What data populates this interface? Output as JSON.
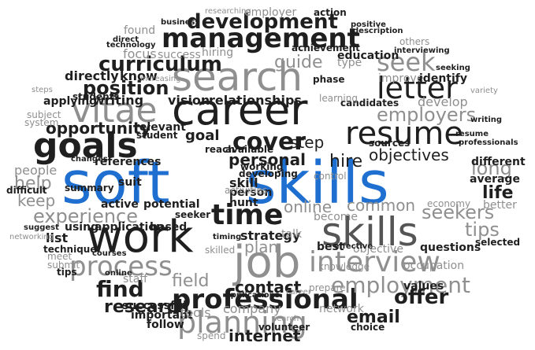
{
  "image": {
    "kind": "word cloud",
    "palette": {
      "background": "#ffffff",
      "dark": "#1f1f1f",
      "mid": "#555555",
      "light": "#8f8f8f",
      "faint": "#b4b4b4",
      "accent": "#1f6fd1"
    }
  },
  "words": [
    {
      "text": "soft",
      "emphasis": "accent"
    },
    {
      "text": "skills",
      "emphasis": "accent"
    },
    {
      "text": "career",
      "emphasis": "dark"
    },
    {
      "text": "search",
      "emphasis": "light"
    },
    {
      "text": "management",
      "emphasis": "dark"
    },
    {
      "text": "development",
      "emphasis": "dark"
    },
    {
      "text": "goals",
      "emphasis": "dark"
    },
    {
      "text": "vitae",
      "emphasis": "light"
    },
    {
      "text": "resume",
      "emphasis": "dark"
    },
    {
      "text": "letter",
      "emphasis": "dark"
    },
    {
      "text": "cover",
      "emphasis": "dark"
    },
    {
      "text": "curriculum",
      "emphasis": "dark"
    },
    {
      "text": "position",
      "emphasis": "dark"
    },
    {
      "text": "time",
      "emphasis": "dark"
    },
    {
      "text": "work",
      "emphasis": "dark"
    },
    {
      "text": "job",
      "emphasis": "light"
    },
    {
      "text": "skills",
      "emphasis": "mid"
    },
    {
      "text": "process",
      "emphasis": "light"
    },
    {
      "text": "interview",
      "emphasis": "light"
    },
    {
      "text": "experience",
      "emphasis": "light"
    },
    {
      "text": "find",
      "emphasis": "dark"
    },
    {
      "text": "professional",
      "emphasis": "dark"
    },
    {
      "text": "planning",
      "emphasis": "light"
    },
    {
      "text": "employment",
      "emphasis": "light"
    },
    {
      "text": "offer",
      "emphasis": "dark"
    },
    {
      "text": "employers",
      "emphasis": "light"
    },
    {
      "text": "objectives",
      "emphasis": "dark"
    },
    {
      "text": "seek",
      "emphasis": "light"
    },
    {
      "text": "opportunity",
      "emphasis": "dark"
    },
    {
      "text": "research",
      "emphasis": "dark"
    },
    {
      "text": "contact",
      "emphasis": "dark"
    },
    {
      "text": "internet",
      "emphasis": "dark"
    },
    {
      "text": "email",
      "emphasis": "dark"
    },
    {
      "text": "hunt",
      "emphasis": "dark"
    },
    {
      "text": "guide",
      "emphasis": "light"
    },
    {
      "text": "hire",
      "emphasis": "dark"
    },
    {
      "text": "step",
      "emphasis": "dark"
    },
    {
      "text": "personal",
      "emphasis": "dark"
    },
    {
      "text": "long",
      "emphasis": "light"
    },
    {
      "text": "life",
      "emphasis": "dark"
    },
    {
      "text": "tips",
      "emphasis": "light"
    },
    {
      "text": "seekers",
      "emphasis": "light"
    },
    {
      "text": "common",
      "emphasis": "light"
    },
    {
      "text": "online",
      "emphasis": "light"
    },
    {
      "text": "strategy",
      "emphasis": "dark"
    },
    {
      "text": "plan",
      "emphasis": "light"
    },
    {
      "text": "field",
      "emphasis": "light"
    },
    {
      "text": "company",
      "emphasis": "light"
    },
    {
      "text": "writing",
      "emphasis": "dark"
    },
    {
      "text": "vision",
      "emphasis": "dark"
    },
    {
      "text": "relationships",
      "emphasis": "dark"
    },
    {
      "text": "goal",
      "emphasis": "dark"
    },
    {
      "text": "help",
      "emphasis": "light"
    },
    {
      "text": "keep",
      "emphasis": "light"
    },
    {
      "text": "list",
      "emphasis": "dark"
    },
    {
      "text": "directly",
      "emphasis": "dark"
    },
    {
      "text": "know",
      "emphasis": "dark"
    },
    {
      "text": "focus",
      "emphasis": "light"
    },
    {
      "text": "hiring",
      "emphasis": "light"
    },
    {
      "text": "success",
      "emphasis": "light"
    },
    {
      "text": "education",
      "emphasis": "dark"
    },
    {
      "text": "achievement",
      "emphasis": "dark"
    },
    {
      "text": "employer",
      "emphasis": "light"
    },
    {
      "text": "action",
      "emphasis": "dark"
    },
    {
      "text": "references",
      "emphasis": "dark"
    },
    {
      "text": "potential",
      "emphasis": "dark"
    },
    {
      "text": "active",
      "emphasis": "dark"
    },
    {
      "text": "using",
      "emphasis": "dark"
    },
    {
      "text": "application",
      "emphasis": "dark"
    },
    {
      "text": "based",
      "emphasis": "dark"
    },
    {
      "text": "questions",
      "emphasis": "dark"
    },
    {
      "text": "values",
      "emphasis": "dark"
    },
    {
      "text": "best",
      "emphasis": "dark"
    },
    {
      "text": "talk",
      "emphasis": "light"
    },
    {
      "text": "timing",
      "emphasis": "dark"
    },
    {
      "text": "follow",
      "emphasis": "dark"
    },
    {
      "text": "important",
      "emphasis": "dark"
    },
    {
      "text": "tools",
      "emphasis": "light"
    },
    {
      "text": "network",
      "emphasis": "light"
    },
    {
      "text": "choice",
      "emphasis": "dark"
    },
    {
      "text": "volunteer",
      "emphasis": "dark"
    },
    {
      "text": "candidates",
      "emphasis": "dark"
    },
    {
      "text": "develop",
      "emphasis": "light"
    },
    {
      "text": "sources",
      "emphasis": "dark"
    },
    {
      "text": "different",
      "emphasis": "dark"
    },
    {
      "text": "average",
      "emphasis": "dark"
    },
    {
      "text": "better",
      "emphasis": "light"
    },
    {
      "text": "selected",
      "emphasis": "dark"
    },
    {
      "text": "people",
      "emphasis": "light"
    },
    {
      "text": "difficult",
      "emphasis": "dark"
    },
    {
      "text": "summary",
      "emphasis": "dark"
    },
    {
      "text": "suit",
      "emphasis": "dark"
    },
    {
      "text": "skill",
      "emphasis": "dark"
    },
    {
      "text": "person",
      "emphasis": "dark"
    },
    {
      "text": "become",
      "emphasis": "light"
    },
    {
      "text": "seeker",
      "emphasis": "dark"
    },
    {
      "text": "staff",
      "emphasis": "light"
    },
    {
      "text": "skilled",
      "emphasis": "light"
    },
    {
      "text": "improve",
      "emphasis": "light"
    },
    {
      "text": "identify",
      "emphasis": "dark"
    },
    {
      "text": "type",
      "emphasis": "light"
    },
    {
      "text": "phase",
      "emphasis": "dark"
    },
    {
      "text": "learning",
      "emphasis": "light"
    },
    {
      "text": "relevant",
      "emphasis": "dark"
    },
    {
      "text": "student",
      "emphasis": "dark"
    },
    {
      "text": "students",
      "emphasis": "dark"
    },
    {
      "text": "applying",
      "emphasis": "dark"
    },
    {
      "text": "system",
      "emphasis": "light"
    },
    {
      "text": "subject",
      "emphasis": "light"
    },
    {
      "text": "reach",
      "emphasis": "dark"
    },
    {
      "text": "available",
      "emphasis": "dark"
    },
    {
      "text": "working",
      "emphasis": "dark"
    },
    {
      "text": "developing",
      "emphasis": "dark"
    },
    {
      "text": "activities",
      "emphasis": "light"
    },
    {
      "text": "suggest",
      "emphasis": "dark"
    },
    {
      "text": "technique",
      "emphasis": "dark"
    },
    {
      "text": "meet",
      "emphasis": "light"
    },
    {
      "text": "submit",
      "emphasis": "light"
    },
    {
      "text": "tips",
      "emphasis": "dark"
    },
    {
      "text": "economy",
      "emphasis": "light"
    },
    {
      "text": "occupation",
      "emphasis": "light"
    },
    {
      "text": "knowledge",
      "emphasis": "light"
    },
    {
      "text": "objective",
      "emphasis": "light"
    },
    {
      "text": "effective",
      "emphasis": "dark"
    },
    {
      "text": "professionals",
      "emphasis": "dark"
    },
    {
      "text": "writing",
      "emphasis": "dark"
    },
    {
      "text": "others",
      "emphasis": "light"
    },
    {
      "text": "interviewing",
      "emphasis": "dark"
    },
    {
      "text": "positive",
      "emphasis": "dark"
    },
    {
      "text": "description",
      "emphasis": "dark"
    },
    {
      "text": "researching",
      "emphasis": "light"
    },
    {
      "text": "business",
      "emphasis": "dark"
    },
    {
      "text": "direct",
      "emphasis": "dark"
    },
    {
      "text": "technology",
      "emphasis": "dark"
    },
    {
      "text": "found",
      "emphasis": "light"
    },
    {
      "text": "increasing",
      "emphasis": "light"
    },
    {
      "text": "seeking",
      "emphasis": "dark"
    },
    {
      "text": "variety",
      "emphasis": "light"
    },
    {
      "text": "control",
      "emphasis": "light"
    },
    {
      "text": "prepare",
      "emphasis": "light"
    },
    {
      "text": "career",
      "emphasis": "light"
    },
    {
      "text": "applications",
      "emphasis": "dark"
    },
    {
      "text": "successful",
      "emphasis": "dark"
    },
    {
      "text": "search",
      "emphasis": "light"
    },
    {
      "text": "spend",
      "emphasis": "light"
    },
    {
      "text": "steps",
      "emphasis": "light"
    },
    {
      "text": "changes",
      "emphasis": "dark"
    },
    {
      "text": "resume",
      "emphasis": "dark"
    },
    {
      "text": "online",
      "emphasis": "dark"
    },
    {
      "text": "courses",
      "emphasis": "dark"
    },
    {
      "text": "networking",
      "emphasis": "light"
    }
  ]
}
